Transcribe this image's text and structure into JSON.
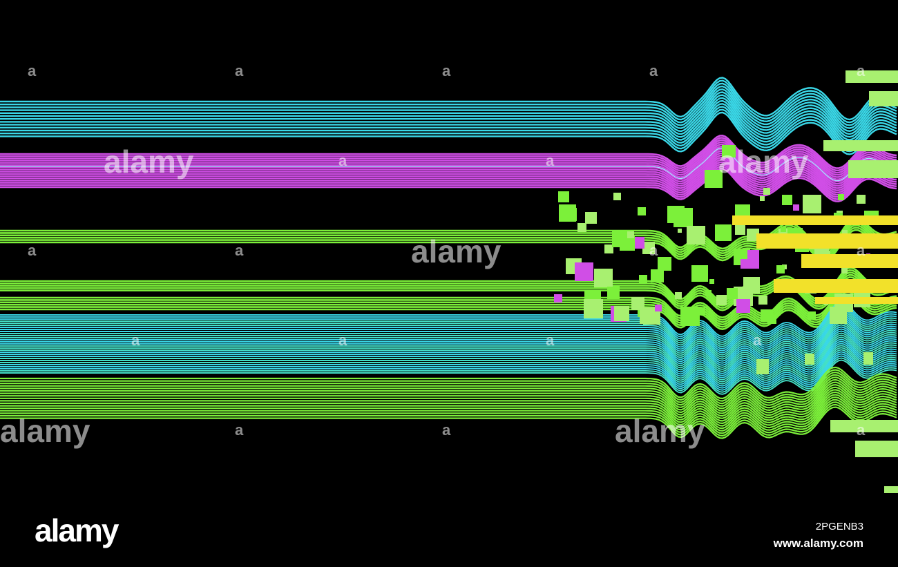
{
  "image": {
    "background": "#000000",
    "palette": {
      "cyan": "#3ad8e8",
      "magenta": "#d04ee6",
      "green": "#7cf03a",
      "lime": "#a8f070",
      "yellow": "#f2e12a"
    }
  },
  "watermark": {
    "large_text": "alamy",
    "small_text": "a"
  },
  "footer": {
    "brand": "alamy",
    "image_id": "2PGENB3",
    "url": "www.alamy.com"
  }
}
